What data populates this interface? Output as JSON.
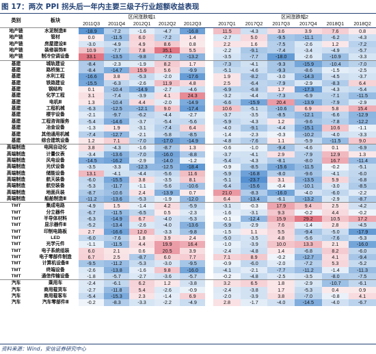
{
  "figure_title": "图 17：两次 PPI 拐头后一年内主要三级子行业超额收益表现",
  "source": "资料来源：Wind，安信证券研究中心",
  "header": {
    "category": "类别",
    "sector": "板块",
    "period1": "区间涨跌幅1",
    "period2": "区间涨跌幅2",
    "cols1": [
      "2011Q3",
      "2011Q4",
      "2012Q1",
      "2012Q2",
      "2012Q3"
    ],
    "cols2": [
      "2017Q1",
      "2017Q2",
      "2017Q3",
      "2017Q4",
      "2018Q1",
      "2018Q2"
    ]
  },
  "colors": {
    "strong_red": "#e06c7a",
    "light_red": "#f6d3d6",
    "strong_blue": "#4f8fd0",
    "light_blue": "#cfe0f3",
    "title_blue": "#1f3f73"
  },
  "rows": [
    {
      "cat": "地产链",
      "sec": "水泥制造Ⅲ",
      "v1": [
        "-18.9",
        "-7.2",
        "-1.6",
        "-4.7",
        "-16.8"
      ],
      "v2": [
        "11.5",
        "-4.3",
        "3.6",
        "3.9",
        "7.6",
        "0.8"
      ],
      "group_start": true
    },
    {
      "cat": "地产链",
      "sec": "管材",
      "v1": [
        "0.0",
        "-11.5",
        "6.0",
        "-7.2",
        "1.4"
      ],
      "v2": [
        "-2.7",
        "5.0",
        "-9.5",
        "-11.1",
        "-6.2",
        "-4.3"
      ]
    },
    {
      "cat": "地产链",
      "sec": "房屋建设Ⅲ",
      "v1": [
        "-3.0",
        "-4.9",
        "4.9",
        "8.6",
        "0.8"
      ],
      "v2": [
        "2.2",
        "1.6",
        "-7.5",
        "-2.6",
        "1.2",
        "-7.2"
      ]
    },
    {
      "cat": "地产链",
      "sec": "装修装饰Ⅲ",
      "v1": [
        "10.9",
        "-7.7",
        "7.8",
        "35.1",
        "5.5"
      ],
      "v2": [
        "-2.2",
        "-9.1",
        "-7.4",
        "-3.4",
        "-4.9",
        "-5.7"
      ]
    },
    {
      "cat": "地产链",
      "sec": "制冷空调设备",
      "v1": [
        "33.1",
        "-13.5",
        "-9.8",
        "-7.0",
        "-13.2"
      ],
      "v2": [
        "-3.5",
        "-7.7",
        "-18.0",
        "-2.6",
        "-10.9",
        "-3.3"
      ]
    },
    {
      "cat": "基建",
      "sec": "城轨建设",
      "v1": [
        "-8.4",
        "-2.3",
        "-1.9",
        "8.2",
        "1.7"
      ],
      "v2": [
        "-7.3",
        "-4.1",
        "-9.3",
        "-15.9",
        "-10.4",
        "-7.0"
      ],
      "group_start": true
    },
    {
      "cat": "基建",
      "sec": "路桥施工",
      "v1": [
        "-8.4",
        "-14.7",
        "15.9",
        "5.6",
        "-9.9"
      ],
      "v2": [
        "-5.1",
        "-4.6",
        "-9.3",
        "-8.6",
        "-1.5",
        "-2.5"
      ]
    },
    {
      "cat": "基建",
      "sec": "水利工程",
      "v1": [
        "-16.6",
        "3.8",
        "-5.3",
        "-2.0",
        "-17.6"
      ],
      "v2": [
        "1.9",
        "-8.2",
        "-3.0",
        "-14.3",
        "-4.5",
        "-3.7"
      ]
    },
    {
      "cat": "基建",
      "sec": "铁路建设",
      "v1": [
        "-15.5",
        "-6.3",
        "-2.6",
        "11.9",
        "4.8"
      ],
      "v2": [
        "2.5",
        "-6.4",
        "-7.9",
        "-2.9",
        "-8.3",
        "6.4"
      ]
    },
    {
      "cat": "基建",
      "sec": "钢结构",
      "v1": [
        "0.1",
        "-10.4",
        "-14.9",
        "-2.7",
        "-4.6"
      ],
      "v2": [
        "-6.9",
        "-6.8",
        "1.7",
        "-17.3",
        "-4.3",
        "-5.4"
      ]
    },
    {
      "cat": "基建",
      "sec": "化学工程",
      "v1": [
        "3.1",
        "-7.4",
        "-3.9",
        "4.1",
        "24.3"
      ],
      "v2": [
        "-3.2",
        "-4.4",
        "-7.3",
        "-6.9",
        "-7.1",
        "-11.5"
      ]
    },
    {
      "cat": "基建",
      "sec": "电机Ⅲ",
      "v1": [
        "1.3",
        "-10.4",
        "4.4",
        "-2.0",
        "-14.9"
      ],
      "v2": [
        "-6.6",
        "-15.9",
        "20.4",
        "-13.9",
        "-7.9",
        "-2.9"
      ]
    },
    {
      "cat": "基建",
      "sec": "工程机械",
      "v1": [
        "-6.3",
        "-12.5",
        "-12.1",
        "9.0",
        "-17.4"
      ],
      "v2": [
        "10.6",
        "-5.1",
        "-10.6",
        "6.9",
        "5.8",
        "15.4"
      ]
    },
    {
      "cat": "基建",
      "sec": "楼宇设备",
      "v1": [
        "-2.1",
        "-9.7",
        "-6.2",
        "-4.4",
        "-2.7"
      ],
      "v2": [
        "-3.7",
        "-3.5",
        "-8.5",
        "-12.1",
        "-6.6",
        "-12.9"
      ]
    },
    {
      "cat": "基建",
      "sec": "工程咨询服务",
      "v1": [
        "-5.4",
        "-14.6",
        "-3.7",
        "-5.4",
        "-5.6"
      ],
      "v2": [
        "-5.9",
        "-4.3",
        "1.2",
        "-9.6",
        "-7.8",
        "-12.2"
      ]
    },
    {
      "cat": "基建",
      "sec": "冶金设备",
      "v1": [
        "-1.3",
        "1.9",
        "-3.1",
        "-7.4",
        "6.4"
      ],
      "v2": [
        "-4.0",
        "-9.1",
        "-4.4",
        "-15.1",
        "10.6",
        "-1.1"
      ]
    },
    {
      "cat": "基建",
      "sec": "其他通用机械",
      "v1": [
        "-7.4",
        "-12.7",
        "-2.1",
        "-5.8",
        "-8.5"
      ],
      "v2": [
        "-1.4",
        "-2.3",
        "-0.3",
        "-10.2",
        "-4.0",
        "-3.3"
      ]
    },
    {
      "cat": "基建",
      "sec": "综合建筑设备",
      "v1": [
        "1.2",
        "7.1",
        "-7.0",
        "-17.0",
        "-14.9"
      ],
      "v2": [
        "-4.8",
        "-7.6",
        "1.1",
        "-5.9",
        "-11.5",
        "9.0"
      ]
    },
    {
      "cat": "高端制造",
      "sec": "电网自动化",
      "v1": [
        "3.8",
        "-4.3",
        "-1.6",
        "-8.7",
        "1.3"
      ],
      "v2": [
        "-0.6",
        "-1.0",
        "-9.4",
        "-4.6",
        "0.1",
        "-6.9"
      ],
      "group_start": true
    },
    {
      "cat": "高端制造",
      "sec": "计量仪表",
      "v1": [
        "-3.4",
        "-13.6",
        "-7.0",
        "-16.0",
        "-8.8"
      ],
      "v2": [
        "-3.7",
        "-4.1",
        "2.9",
        "-7.9",
        "12.9",
        "1.3"
      ]
    },
    {
      "cat": "高端制造",
      "sec": "风电设备",
      "v1": [
        "-14.5",
        "-16.2",
        "-2.9",
        "-14.0",
        "-1.2"
      ],
      "v2": [
        "-5.4",
        "-4.3",
        "-8.1",
        "-8.0",
        "16.7",
        "-11.4"
      ]
    },
    {
      "cat": "高端制造",
      "sec": "光伏设备",
      "v1": [
        "-3.5",
        "-3.3",
        "-12.3",
        "-12.5",
        "-18.4"
      ],
      "v2": [
        "-0.9",
        "-8.5",
        "-15.6",
        "-11.5",
        "-0.2",
        "-5.1"
      ]
    },
    {
      "cat": "高端制造",
      "sec": "储能设备",
      "v1": [
        "13.1",
        "-4.1",
        "-4.4",
        "-5.6",
        "11.6"
      ],
      "v2": [
        "-5.9",
        "-16.8",
        "-8.0",
        "-9.6",
        "-4.1",
        "-6.0"
      ]
    },
    {
      "cat": "高端制造",
      "sec": "航天装备",
      "v1": [
        "-6.0",
        "-15.5",
        "3.8",
        "-3.5",
        "8.1"
      ],
      "v2": [
        "-5.1",
        "-23.7",
        "3.1",
        "-13.5",
        "5.9",
        "-6.8"
      ]
    },
    {
      "cat": "高端制造",
      "sec": "航空装备",
      "v1": [
        "-5.3",
        "-11.7",
        "-1.1",
        "-5.6",
        "-10.6"
      ],
      "v2": [
        "-6.4",
        "-15.6",
        "-0.4",
        "-10.1",
        "-3.0",
        "-8.5"
      ]
    },
    {
      "cat": "高端制造",
      "sec": "地面兵装",
      "v1": [
        "-8.7",
        "-10.6",
        "2.4",
        "-13.9",
        "0.7"
      ],
      "v2": [
        "21.0",
        "-8.3",
        "-16.0",
        "-4.0",
        "-6.0",
        "-2.2"
      ]
    },
    {
      "cat": "高端制造",
      "sec": "船舶制造Ⅲ",
      "v1": [
        "-11.2",
        "-13.6",
        "-5.3",
        "-1.9",
        "-12.0"
      ],
      "v2": [
        "6.4",
        "-13.4",
        "-6.1",
        "-13.2",
        "-2.9",
        "-8.7"
      ]
    },
    {
      "cat": "TMT",
      "sec": "集成电路",
      "v1": [
        "-4.9",
        "1.5",
        "-1.4",
        "4.2",
        "-5.9"
      ],
      "v2": [
        "-3.1",
        "-0.3",
        "17.9",
        "9.4",
        "2.5",
        "-4.2"
      ],
      "group_start": true
    },
    {
      "cat": "TMT",
      "sec": "分立器件",
      "v1": [
        "-6.7",
        "-11.5",
        "-6.5",
        "0.5",
        "-2.3"
      ],
      "v2": [
        "-1.6",
        "-3.1",
        "9.3",
        "-0.2",
        "4.4",
        "-0.2"
      ]
    },
    {
      "cat": "TMT",
      "sec": "半导体材料",
      "v1": [
        "-6.3",
        "-14.9",
        "6.7",
        "-4.0",
        "-5.3"
      ],
      "v2": [
        "-0.1",
        "-12.4",
        "15.9",
        "29.2",
        "10.5",
        "17.2"
      ]
    },
    {
      "cat": "TMT",
      "sec": "显示器件Ⅲ",
      "v1": [
        "-5.2",
        "-13.4",
        "-2.6",
        "-4.0",
        "-13.6"
      ],
      "v2": [
        "-5.9",
        "-2.9",
        "7.6",
        "-1.4",
        "2.8",
        "-4.5"
      ]
    },
    {
      "cat": "TMT",
      "sec": "印制电路板",
      "v1": [
        "2.7",
        "-16.6",
        "12.0",
        "-3.3",
        "-9.8"
      ],
      "v2": [
        "-1.5",
        "1.1",
        "5.5",
        "-9.4",
        "-5.0",
        "-17.9"
      ]
    },
    {
      "cat": "TMT",
      "sec": "LED",
      "v1": [
        "-6.0",
        "-7.6",
        "1.8",
        "3.9",
        "2.4"
      ],
      "v2": [
        "-5.0",
        "-3.5",
        "4.8",
        "-5.6",
        "-7.6",
        "-5.3"
      ]
    },
    {
      "cat": "TMT",
      "sec": "光学元件",
      "v1": [
        "-1.1",
        "-11.5",
        "4.4",
        "19.9",
        "16.4"
      ],
      "v2": [
        "-1.0",
        "-3.9",
        "10.0",
        "13.3",
        "2.1",
        "-16.0"
      ]
    },
    {
      "cat": "TMT",
      "sec": "电子系统组装",
      "v1": [
        "6.0",
        "2.1",
        "0.6",
        "20.5",
        "3.9"
      ],
      "v2": [
        "-2.4",
        "-4.8",
        "1.4",
        "-6.8",
        "8.2",
        "-6.0"
      ]
    },
    {
      "cat": "TMT",
      "sec": "电子零部件制造",
      "v1": [
        "6.7",
        "2.5",
        "-8.7",
        "6.0",
        "7.7"
      ],
      "v2": [
        "7.1",
        "8.9",
        "-0.2",
        "-12.7",
        "4.1",
        "-9.4"
      ]
    },
    {
      "cat": "TMT",
      "sec": "计算机设备Ⅲ",
      "v1": [
        "-9.5",
        "-11.2",
        "-5.3",
        "-3.0",
        "-9.5"
      ],
      "v2": [
        "-0.9",
        "-6.0",
        "-2.0",
        "-7.2",
        "5.3",
        "-5.2"
      ]
    },
    {
      "cat": "TMT",
      "sec": "终端设备",
      "v1": [
        "-2.6",
        "-13.8",
        "-1.6",
        "9.8",
        "-16.0"
      ],
      "v2": [
        "-4.1",
        "-2.1",
        "-7.7",
        "-11.2",
        "-1.4",
        "-11.3"
      ]
    },
    {
      "cat": "TMT",
      "sec": "通信传输设备",
      "v1": [
        "-1.8",
        "-5.7",
        "-2.7",
        "-3.6",
        "-5.7"
      ],
      "v2": [
        "-0.2",
        "-4.8",
        "-2.5",
        "-3.5",
        "-8.0",
        "-7.5"
      ]
    },
    {
      "cat": "汽车",
      "sec": "乘用车",
      "v1": [
        "-2.4",
        "-6.1",
        "6.2",
        "1.2",
        "-3.8"
      ],
      "v2": [
        "3.2",
        "6.5",
        "1.8",
        "-2.9",
        "-10.7",
        "-6.1"
      ],
      "group_start": true
    },
    {
      "cat": "汽车",
      "sec": "商用载货车",
      "v1": [
        "-2.7",
        "-11.8",
        "5.4",
        "-2.6",
        "-0.9"
      ],
      "v2": [
        "-2.4",
        "-3.8",
        "1.7",
        "-5.3",
        "0.4",
        "0.9"
      ]
    },
    {
      "cat": "汽车",
      "sec": "商用载客车",
      "v1": [
        "-5.4",
        "-15.3",
        "2.3",
        "-1.4",
        "6.9"
      ],
      "v2": [
        "-2.0",
        "-3.9",
        "3.8",
        "-7.0",
        "-0.8",
        "4.1"
      ]
    },
    {
      "cat": "汽车",
      "sec": "汽车零部件Ⅲ",
      "v1": [
        "-0.2",
        "-8.3",
        "-3.3",
        "-2.2",
        "-4.9"
      ],
      "v2": [
        "2.8",
        "-1.7",
        "-4.0",
        "-14.5",
        "-4.0",
        "-6.7"
      ]
    }
  ]
}
